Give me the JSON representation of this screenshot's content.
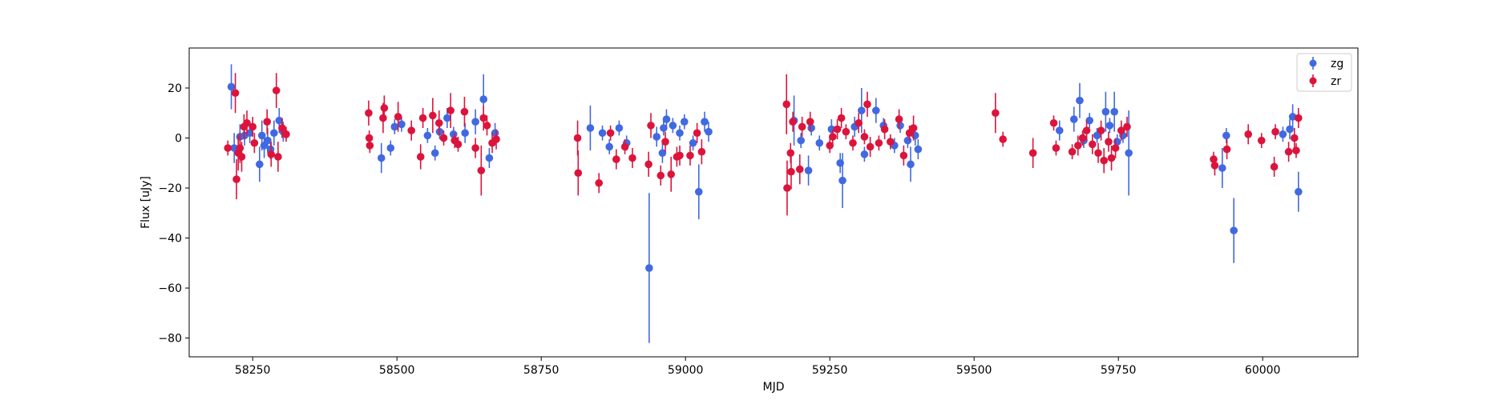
{
  "chart_data": {
    "type": "scatter",
    "xlabel": "MJD",
    "ylabel": "Flux [uJy]",
    "xlim": [
      58140,
      60165
    ],
    "ylim": [
      -87.5,
      36
    ],
    "x_ticks": [
      58250,
      58500,
      58750,
      59000,
      59250,
      59500,
      59750,
      60000
    ],
    "y_ticks": [
      -80,
      -60,
      -40,
      -20,
      0,
      20
    ],
    "grid": false,
    "legend_position": "top-right",
    "series": [
      {
        "name": "zg",
        "color": "#4169e1",
        "points": [
          {
            "x": 58213,
            "y": 20.5,
            "err": 9
          },
          {
            "x": 58218,
            "y": -4,
            "err": 6
          },
          {
            "x": 58228,
            "y": 0.5,
            "err": 5
          },
          {
            "x": 58236,
            "y": 1,
            "err": 4
          },
          {
            "x": 58245,
            "y": 2,
            "err": 4
          },
          {
            "x": 58262,
            "y": -10.5,
            "err": 7
          },
          {
            "x": 58266,
            "y": 1,
            "err": 6
          },
          {
            "x": 58270,
            "y": -3,
            "err": 5
          },
          {
            "x": 58276,
            "y": -1,
            "err": 5
          },
          {
            "x": 58281,
            "y": -4.5,
            "err": 4
          },
          {
            "x": 58287,
            "y": 2,
            "err": 5
          },
          {
            "x": 58296,
            "y": 7,
            "err": 5
          },
          {
            "x": 58303,
            "y": 2.5,
            "err": 4
          },
          {
            "x": 58473,
            "y": -8,
            "err": 6
          },
          {
            "x": 58489,
            "y": -4,
            "err": 3
          },
          {
            "x": 58496,
            "y": 4.5,
            "err": 3
          },
          {
            "x": 58508,
            "y": 5.5,
            "err": 3
          },
          {
            "x": 58553,
            "y": 1,
            "err": 3
          },
          {
            "x": 58566,
            "y": -6,
            "err": 3
          },
          {
            "x": 58574,
            "y": 2.5,
            "err": 3
          },
          {
            "x": 58587,
            "y": 8,
            "err": 4
          },
          {
            "x": 58598,
            "y": 1.5,
            "err": 3
          },
          {
            "x": 58618,
            "y": 2,
            "err": 4
          },
          {
            "x": 58636,
            "y": 6.5,
            "err": 5
          },
          {
            "x": 58650,
            "y": 15.5,
            "err": 10
          },
          {
            "x": 58660,
            "y": -8,
            "err": 4
          },
          {
            "x": 58670,
            "y": 2,
            "err": 4
          },
          {
            "x": 58835,
            "y": 4,
            "err": 9
          },
          {
            "x": 58856,
            "y": 2,
            "err": 3
          },
          {
            "x": 58868,
            "y": -3.5,
            "err": 3
          },
          {
            "x": 58885,
            "y": 4,
            "err": 3
          },
          {
            "x": 58898,
            "y": -2,
            "err": 3
          },
          {
            "x": 58937,
            "y": -52,
            "err": 30
          },
          {
            "x": 58950,
            "y": 0.5,
            "err": 4
          },
          {
            "x": 58960,
            "y": -6,
            "err": 4
          },
          {
            "x": 58962,
            "y": 4,
            "err": 3
          },
          {
            "x": 58967,
            "y": 7.5,
            "err": 4
          },
          {
            "x": 58978,
            "y": 5,
            "err": 3
          },
          {
            "x": 58990,
            "y": 2,
            "err": 3
          },
          {
            "x": 58998,
            "y": 6.5,
            "err": 3
          },
          {
            "x": 59013,
            "y": -2,
            "err": 3
          },
          {
            "x": 59023,
            "y": -21.5,
            "err": 11
          },
          {
            "x": 59033,
            "y": 6.5,
            "err": 4
          },
          {
            "x": 59040,
            "y": 2.5,
            "err": 4
          },
          {
            "x": 59188,
            "y": 7,
            "err": 10
          },
          {
            "x": 59200,
            "y": -1,
            "err": 3
          },
          {
            "x": 59213,
            "y": -13,
            "err": 6
          },
          {
            "x": 59218,
            "y": 4,
            "err": 3
          },
          {
            "x": 59232,
            "y": -2,
            "err": 3
          },
          {
            "x": 59253,
            "y": 3.5,
            "err": 4
          },
          {
            "x": 59268,
            "y": -10,
            "err": 4
          },
          {
            "x": 59272,
            "y": -17,
            "err": 11
          },
          {
            "x": 59293,
            "y": 4.5,
            "err": 4
          },
          {
            "x": 59305,
            "y": 11,
            "err": 9
          },
          {
            "x": 59310,
            "y": -6.5,
            "err": 3
          },
          {
            "x": 59330,
            "y": 11,
            "err": 5
          },
          {
            "x": 59343,
            "y": 5,
            "err": 3
          },
          {
            "x": 59362,
            "y": -3,
            "err": 3
          },
          {
            "x": 59372,
            "y": 5,
            "err": 3
          },
          {
            "x": 59385,
            "y": -1,
            "err": 3
          },
          {
            "x": 59390,
            "y": -10.5,
            "err": 7
          },
          {
            "x": 59398,
            "y": 1,
            "err": 4
          },
          {
            "x": 59403,
            "y": -4.5,
            "err": 4
          },
          {
            "x": 59648,
            "y": 3,
            "err": 4
          },
          {
            "x": 59673,
            "y": 7.5,
            "err": 5
          },
          {
            "x": 59683,
            "y": 15,
            "err": 7
          },
          {
            "x": 59690,
            "y": -1,
            "err": 3
          },
          {
            "x": 59700,
            "y": 7,
            "err": 3
          },
          {
            "x": 59713,
            "y": 1,
            "err": 3
          },
          {
            "x": 59728,
            "y": 10.5,
            "err": 8
          },
          {
            "x": 59735,
            "y": 5,
            "err": 3
          },
          {
            "x": 59743,
            "y": 10.5,
            "err": 8
          },
          {
            "x": 59748,
            "y": -1.5,
            "err": 3
          },
          {
            "x": 59758,
            "y": 1,
            "err": 3
          },
          {
            "x": 59768,
            "y": -6,
            "err": 17
          },
          {
            "x": 59930,
            "y": -12,
            "err": 8
          },
          {
            "x": 59937,
            "y": 1,
            "err": 3
          },
          {
            "x": 59950,
            "y": -37,
            "err": 13
          },
          {
            "x": 60035,
            "y": 1.5,
            "err": 3
          },
          {
            "x": 60047,
            "y": 3.5,
            "err": 4
          },
          {
            "x": 60052,
            "y": 8.5,
            "err": 5
          },
          {
            "x": 60062,
            "y": -21.5,
            "err": 8
          }
        ]
      },
      {
        "name": "zr",
        "color": "#dc143c",
        "points": [
          {
            "x": 58207,
            "y": -4,
            "err": 3
          },
          {
            "x": 58220,
            "y": 18,
            "err": 8
          },
          {
            "x": 58222,
            "y": -16.5,
            "err": 8
          },
          {
            "x": 58225,
            "y": -6,
            "err": 7
          },
          {
            "x": 58228,
            "y": -4,
            "err": 6
          },
          {
            "x": 58231,
            "y": -7.5,
            "err": 6
          },
          {
            "x": 58235,
            "y": 4.5,
            "err": 5
          },
          {
            "x": 58240,
            "y": 6,
            "err": 5
          },
          {
            "x": 58250,
            "y": 4.5,
            "err": 4
          },
          {
            "x": 58253,
            "y": -2,
            "err": 4
          },
          {
            "x": 58275,
            "y": 6.5,
            "err": 5
          },
          {
            "x": 58282,
            "y": -6.5,
            "err": 5
          },
          {
            "x": 58291,
            "y": 19,
            "err": 7
          },
          {
            "x": 58294,
            "y": -7.5,
            "err": 6
          },
          {
            "x": 58301,
            "y": 4,
            "err": 4
          },
          {
            "x": 58308,
            "y": 1.5,
            "err": 3
          },
          {
            "x": 58451,
            "y": 10,
            "err": 5
          },
          {
            "x": 58452,
            "y": 0,
            "err": 3
          },
          {
            "x": 58453,
            "y": -3,
            "err": 3
          },
          {
            "x": 58476,
            "y": 8,
            "err": 6
          },
          {
            "x": 58478,
            "y": 12,
            "err": 5
          },
          {
            "x": 58502,
            "y": 8.5,
            "err": 6
          },
          {
            "x": 58525,
            "y": 3,
            "err": 4
          },
          {
            "x": 58541,
            "y": -7.5,
            "err": 5
          },
          {
            "x": 58545,
            "y": 8,
            "err": 4
          },
          {
            "x": 58562,
            "y": 9,
            "err": 7
          },
          {
            "x": 58573,
            "y": 6,
            "err": 5
          },
          {
            "x": 58581,
            "y": 0,
            "err": 3
          },
          {
            "x": 58593,
            "y": 11,
            "err": 7
          },
          {
            "x": 58600,
            "y": -1,
            "err": 3
          },
          {
            "x": 58606,
            "y": -2.5,
            "err": 3
          },
          {
            "x": 58617,
            "y": 10.5,
            "err": 6
          },
          {
            "x": 58636,
            "y": -4,
            "err": 4
          },
          {
            "x": 58646,
            "y": -13,
            "err": 10
          },
          {
            "x": 58650,
            "y": 8,
            "err": 5
          },
          {
            "x": 58656,
            "y": 5,
            "err": 4
          },
          {
            "x": 58665,
            "y": -2,
            "err": 4
          },
          {
            "x": 58672,
            "y": -0.5,
            "err": 4
          },
          {
            "x": 58813,
            "y": 0,
            "err": 7
          },
          {
            "x": 58814,
            "y": -14,
            "err": 9
          },
          {
            "x": 58850,
            "y": -18,
            "err": 4
          },
          {
            "x": 58870,
            "y": 2,
            "err": 3
          },
          {
            "x": 58880,
            "y": -8.5,
            "err": 4
          },
          {
            "x": 58895,
            "y": -3.5,
            "err": 3
          },
          {
            "x": 58908,
            "y": -8,
            "err": 4
          },
          {
            "x": 58936,
            "y": -10.5,
            "err": 5
          },
          {
            "x": 58940,
            "y": 5,
            "err": 5
          },
          {
            "x": 58957,
            "y": -15,
            "err": 4
          },
          {
            "x": 58965,
            "y": -1.5,
            "err": 4
          },
          {
            "x": 58975,
            "y": -14.5,
            "err": 7
          },
          {
            "x": 58985,
            "y": -7.5,
            "err": 4
          },
          {
            "x": 58990,
            "y": -7,
            "err": 4
          },
          {
            "x": 59008,
            "y": -7,
            "err": 4
          },
          {
            "x": 59020,
            "y": 2,
            "err": 4
          },
          {
            "x": 59028,
            "y": -5.5,
            "err": 5
          },
          {
            "x": 59175,
            "y": 13.5,
            "err": 12
          },
          {
            "x": 59176,
            "y": -20,
            "err": 11
          },
          {
            "x": 59182,
            "y": -6,
            "err": 4
          },
          {
            "x": 59183,
            "y": -13.5,
            "err": 7
          },
          {
            "x": 59186,
            "y": 6.5,
            "err": 4
          },
          {
            "x": 59198,
            "y": -12.5,
            "err": 6
          },
          {
            "x": 59202,
            "y": 4.5,
            "err": 4
          },
          {
            "x": 59216,
            "y": 6.5,
            "err": 4
          },
          {
            "x": 59250,
            "y": -3,
            "err": 3
          },
          {
            "x": 59255,
            "y": 0.5,
            "err": 3
          },
          {
            "x": 59263,
            "y": 3.5,
            "err": 4
          },
          {
            "x": 59270,
            "y": 8,
            "err": 4
          },
          {
            "x": 59278,
            "y": 2.5,
            "err": 3
          },
          {
            "x": 59290,
            "y": -2,
            "err": 3
          },
          {
            "x": 59300,
            "y": 6,
            "err": 4
          },
          {
            "x": 59310,
            "y": 0.5,
            "err": 3
          },
          {
            "x": 59315,
            "y": 13.5,
            "err": 5
          },
          {
            "x": 59320,
            "y": -3.5,
            "err": 4
          },
          {
            "x": 59335,
            "y": -2,
            "err": 3
          },
          {
            "x": 59345,
            "y": 3.5,
            "err": 4
          },
          {
            "x": 59355,
            "y": -1.5,
            "err": 3
          },
          {
            "x": 59370,
            "y": 7.5,
            "err": 4
          },
          {
            "x": 59378,
            "y": -7,
            "err": 4
          },
          {
            "x": 59388,
            "y": 2,
            "err": 3
          },
          {
            "x": 59395,
            "y": 4,
            "err": 5
          },
          {
            "x": 59537,
            "y": 10,
            "err": 8
          },
          {
            "x": 59550,
            "y": -0.5,
            "err": 3
          },
          {
            "x": 59602,
            "y": -6,
            "err": 6
          },
          {
            "x": 59638,
            "y": 6,
            "err": 3
          },
          {
            "x": 59642,
            "y": -4,
            "err": 3
          },
          {
            "x": 59670,
            "y": -5.5,
            "err": 3
          },
          {
            "x": 59680,
            "y": -3,
            "err": 4
          },
          {
            "x": 59688,
            "y": 0,
            "err": 3
          },
          {
            "x": 59695,
            "y": 3,
            "err": 4
          },
          {
            "x": 59705,
            "y": -2.5,
            "err": 4
          },
          {
            "x": 59715,
            "y": -6,
            "err": 4
          },
          {
            "x": 59720,
            "y": 3,
            "err": 4
          },
          {
            "x": 59725,
            "y": -9,
            "err": 5
          },
          {
            "x": 59733,
            "y": -1.5,
            "err": 4
          },
          {
            "x": 59738,
            "y": -8,
            "err": 5
          },
          {
            "x": 59745,
            "y": -4,
            "err": 4
          },
          {
            "x": 59755,
            "y": 3,
            "err": 4
          },
          {
            "x": 59765,
            "y": 4.5,
            "err": 4
          },
          {
            "x": 59915,
            "y": -8.5,
            "err": 3
          },
          {
            "x": 59917,
            "y": -11,
            "err": 4
          },
          {
            "x": 59938,
            "y": -4.5,
            "err": 4
          },
          {
            "x": 59975,
            "y": 1.5,
            "err": 4
          },
          {
            "x": 59998,
            "y": -1,
            "err": 3
          },
          {
            "x": 60020,
            "y": -11.5,
            "err": 4
          },
          {
            "x": 60022,
            "y": 2.5,
            "err": 3
          },
          {
            "x": 60045,
            "y": -5.5,
            "err": 4
          },
          {
            "x": 60055,
            "y": 0,
            "err": 4
          },
          {
            "x": 60058,
            "y": -5,
            "err": 3
          },
          {
            "x": 60062,
            "y": 8,
            "err": 4
          }
        ]
      }
    ]
  }
}
